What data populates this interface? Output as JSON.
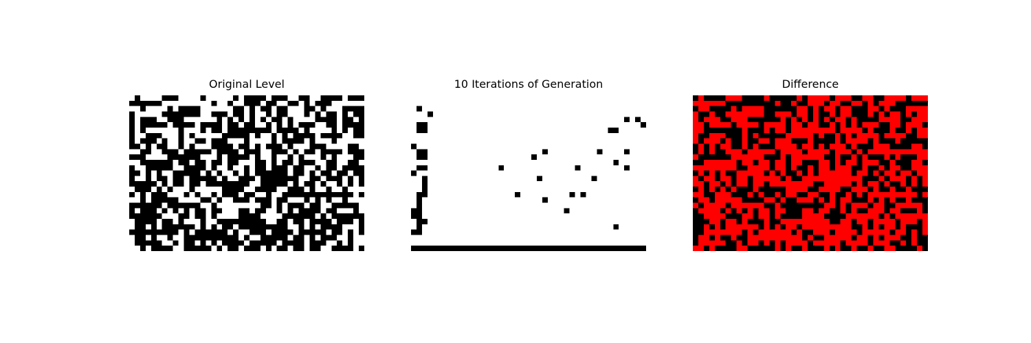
{
  "chart_data": [
    {
      "type": "heatmap",
      "title": "Original Level",
      "colors": {
        "0": "#ffffff",
        "1": "#000000"
      },
      "rows": 29,
      "cols": 43,
      "grid": false,
      "axes_visible": false,
      "cells": [
        "0100001110000100000101111011100110011110111",
        "1111110000000001001001110110011010111000000",
        "0010000101111000000110101101100011010001111",
        "1000001111111001110110100101100010101101011",
        "1011100111000000101010101011010000111101101",
        "1011111011110111101101100101010111001101111",
        "1010000001000101101111111101111010000101011",
        "1001110001010000011111010010101111011110011",
        "1011101001001101110001000010111101000100000",
        "1101011001010001111011010111010001110000110",
        "0011001110111110111101110011101011011110111",
        "1110000111111000101111010010010100010100011",
        "0011111101101101101100011010110111001100110",
        "1001111100111101001001011011101100101101111",
        "1101010011111010100101011111101101011011011",
        "1001011011011111010011101111111001101110101",
        "1111101011011011111111001111101011010010101",
        "0111010100010000011110011110011101001001000",
        "1010111000101001011101100100111111111111101",
        "0010111110000110100111011101100010101001000",
        "1111110111111001000000001101011101100111110",
        "1011101010101101100011011001010111101100010",
        "1111110001101101000011110000111111010111111",
        "0111101101000100111111111001101101111011101",
        "0110101111110101011011111111100101011110001",
        "1111111110101111110100111011110111110110101",
        "0110100100111111111101001111101101011100100",
        "0111110010110101011110111110111101110010100",
        "0010111100111110101101110101101101100111101"
      ]
    },
    {
      "type": "heatmap",
      "title": "10 Iterations of Generation",
      "colors": {
        "0": "#ffffff",
        "1": "#000000"
      },
      "rows": 29,
      "cols": 43,
      "grid": false,
      "axes_visible": false,
      "cells": [
        "0000000000000000000000000000000000000000000",
        "0000000000000000000000000000000000000000000",
        "0100000000000000000000000000000000000000000",
        "0001000000000000000000000000000000000000000",
        "0000000000000000000000000000000000000001010",
        "0110000000000000000000000000000000000000001",
        "0110000000000000000000000000000000001100000",
        "0000000000000000000000000000000000000000000",
        "0000000000000000000000000000000000000000000",
        "1000000000000000000000000000000000000000000",
        "0110000000000000000000001000000000100001000",
        "0110000000000000000000100000000000000000000",
        "0000000000000000000000000000000000000100000",
        "0110000000000000100000000000001000000001000",
        "1000000000000000000000000000000000000000000",
        "0010000000000000000000010000000001000000000",
        "0010000000000000000000000000000000000000000",
        "0010000000000000000000000000000000000000000",
        "0110000000000000000100000000010100000000000",
        "0100000000000000000000001000000000000000000",
        "0100000000000000000000000000000000000000000",
        "1100000000000000000000000000100000000000000",
        "1100000000000000000000000000000000000000000",
        "0110000000000000000000000000000000000000000",
        "0100000000000000000000000000000000000100000",
        "1100000000000000000000000000000000000000000",
        "0000000000000000000000000000000000000000000",
        "0000000000000000000000000000000000000000000",
        "1111111111111111111111111111111111111111111"
      ]
    },
    {
      "type": "heatmap",
      "title": "Difference",
      "colors": {
        "0": "#000000",
        "1": "#ff0000"
      },
      "rows": 29,
      "cols": 43,
      "grid": false,
      "axes_visible": false,
      "cells": [
        "0100001110000100000101111011100110011110111",
        "1111110000000001001001110110011010111000000",
        "0110000101111000000110101101100011010001111",
        "1001001111111001110110100101100010101101011",
        "1011100111000000101010101011010000111100111",
        "1101111011110111101101100101010111001101110",
        "1100000001000101101111111101111010001001011",
        "1001110001010000011111010010101111011110011",
        "1011101001001101110001000010111101000100000",
        "0101011001010001111011010111010001110000110",
        "0101001110111110111101111011101011111111111",
        "1000000111111000101111110010010100010100011",
        "0011111101101101101100011010110111001000110",
        "1111111100111101101001011011100100101100111",
        "0101010011111010100101011111101101011011011",
        "1011011011011111010011111111111000101110101",
        "1101101011011011111111001111101011010010101",
        "0101010100010000011110011110011101001001000",
        "1100111000101001011001100100101011111111101",
        "0110111110000110100111010101100010101001000",
        "1011110111111001000000001101011101100111110",
        "0111101010101101100011011001010011101100010",
        "0011110001101101000011110000111111010111111",
        "0001101101000100111111111001101101111011101",
        "0010101111110101011011111111100101011010001",
        "0011111110101111110100111011110111110110101",
        "0110100100111111111101001111101101011100100",
        "0111110010110101011110111110111101110010100",
        "1101000011000001010010001010010010011000010"
      ]
    }
  ]
}
